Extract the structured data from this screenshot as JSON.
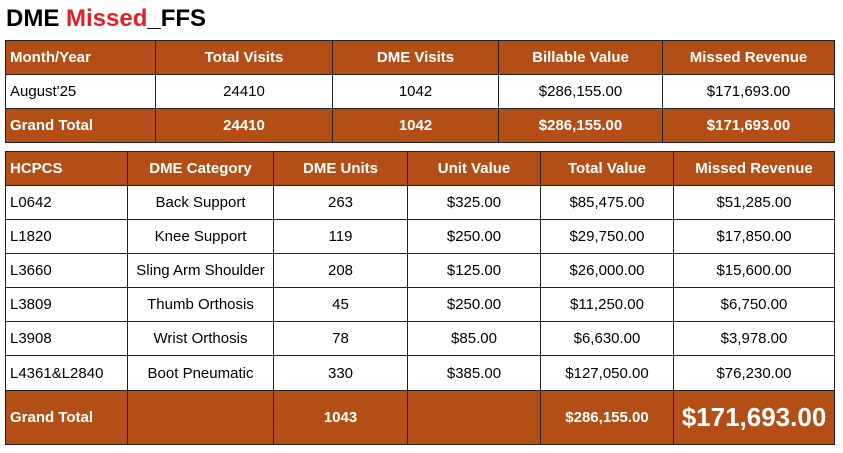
{
  "title": {
    "part1": "DME ",
    "part2": "Missed",
    "part3": "_FFS"
  },
  "summary": {
    "headers": [
      "Month/Year",
      "Total Visits",
      "DME Visits",
      "Billable Value",
      "Missed Revenue"
    ],
    "rows": [
      [
        "August'25",
        "24410",
        "1042",
        "$286,155.00",
        "$171,693.00"
      ]
    ],
    "total": [
      "Grand Total",
      "24410",
      "1042",
      "$286,155.00",
      "$171,693.00"
    ]
  },
  "detail": {
    "headers": [
      "HCPCS",
      "DME Category",
      "DME Units",
      "Unit Value",
      "Total Value",
      "Missed Revenue"
    ],
    "rows": [
      [
        "L0642",
        "Back Support",
        "263",
        "$325.00",
        "$85,475.00",
        "$51,285.00"
      ],
      [
        "L1820",
        "Knee Support",
        "119",
        "$250.00",
        "$29,750.00",
        "$17,850.00"
      ],
      [
        "L3660",
        "Sling Arm Shoulder",
        "208",
        "$125.00",
        "$26,000.00",
        "$15,600.00"
      ],
      [
        "L3809",
        "Thumb Orthosis",
        "45",
        "$250.00",
        "$11,250.00",
        "$6,750.00"
      ],
      [
        "L3908",
        "Wrist Orthosis",
        "78",
        "$85.00",
        "$6,630.00",
        "$3,978.00"
      ],
      [
        "L4361&L2840",
        "Boot Pneumatic",
        "330",
        "$385.00",
        "$127,050.00",
        "$76,230.00"
      ]
    ],
    "total": [
      "Grand Total",
      "",
      "1043",
      "",
      "$286,155.00",
      "$171,693.00"
    ]
  },
  "colors": {
    "header_bg": "#b34f16",
    "header_text": "#ffffff",
    "title_accent": "#e0202a"
  }
}
